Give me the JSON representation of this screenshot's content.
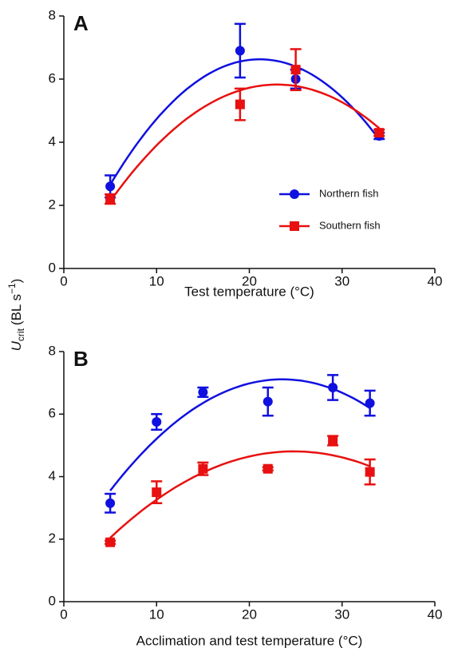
{
  "chart_data": [
    {
      "type": "scatter",
      "panel_label": "A",
      "x_label": "Test temperature (°C)",
      "y_label": {
        "symbol": "U",
        "subscript": "crit",
        "unit": "(BL s",
        "superscript": "−1",
        "close": ")"
      },
      "xlim": [
        0,
        40
      ],
      "xticks": [
        0,
        10,
        20,
        30,
        40
      ],
      "ylim": [
        0,
        8
      ],
      "yticks": [
        0,
        2,
        4,
        6,
        8
      ],
      "legend": "center-right",
      "fit": "quadratic",
      "series": [
        {
          "name": "Northern fish",
          "color": "#1010e0",
          "marker": "circle",
          "x": [
            5,
            19,
            25,
            34
          ],
          "values": [
            2.6,
            6.9,
            6.0,
            4.2
          ],
          "errors": [
            0.35,
            0.85,
            0.3,
            0.1
          ]
        },
        {
          "name": "Southern fish",
          "color": "#e81010",
          "marker": "square",
          "x": [
            5,
            19,
            25,
            34
          ],
          "values": [
            2.2,
            5.2,
            6.3,
            4.3
          ],
          "errors": [
            0.15,
            0.5,
            0.65,
            0.1
          ]
        }
      ]
    },
    {
      "type": "scatter",
      "panel_label": "B",
      "x_label": "Acclimation and test temperature (°C)",
      "xlim": [
        0,
        40
      ],
      "xticks": [
        0,
        10,
        20,
        30,
        40
      ],
      "ylim": [
        0,
        8
      ],
      "yticks": [
        0,
        2,
        4,
        6,
        8
      ],
      "fit": "quadratic",
      "series": [
        {
          "name": "Northern fish",
          "color": "#1010e0",
          "marker": "circle",
          "x": [
            5,
            10,
            15,
            22,
            29,
            33
          ],
          "values": [
            3.15,
            5.75,
            6.7,
            6.4,
            6.85,
            6.35
          ],
          "errors": [
            0.3,
            0.25,
            0.15,
            0.45,
            0.4,
            0.4
          ]
        },
        {
          "name": "Southern fish",
          "color": "#e81010",
          "marker": "square",
          "x": [
            5,
            10,
            15,
            22,
            29,
            33
          ],
          "values": [
            1.9,
            3.5,
            4.25,
            4.25,
            5.15,
            4.15
          ],
          "errors": [
            0.05,
            0.35,
            0.2,
            0.05,
            0.15,
            0.4
          ]
        }
      ]
    }
  ]
}
